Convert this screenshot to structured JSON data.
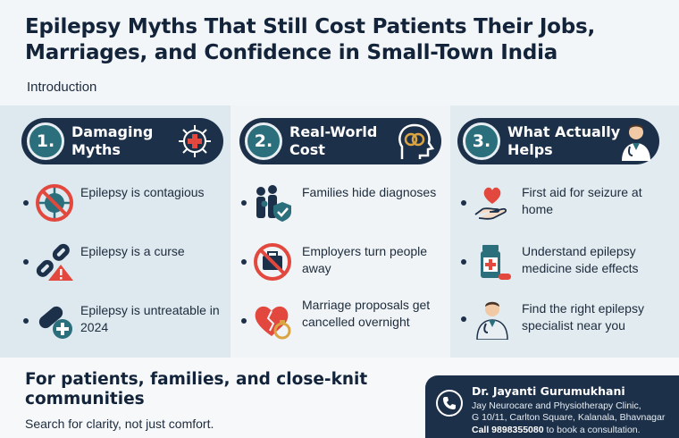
{
  "header": {
    "title": "Epilepsy Myths That Still Cost Patients Their Jobs, Marriages, and Confidence in Small-Town India",
    "intro": "Introduction"
  },
  "columns": [
    {
      "number": "1.",
      "heading": "Damaging Myths",
      "heading_icon": "medical-cross-virus-icon",
      "items": [
        {
          "text": "Epilepsy is contagious",
          "icon": "no-virus-icon"
        },
        {
          "text": "Epilepsy is a curse",
          "icon": "broken-chain-warning-icon"
        },
        {
          "text": "Epilepsy is untreatable in 2024",
          "icon": "pill-plus-icon"
        }
      ]
    },
    {
      "number": "2.",
      "heading": "Real-World Cost",
      "heading_icon": "head-rings-icon",
      "items": [
        {
          "text": "Families hide diagnoses",
          "icon": "family-shield-icon"
        },
        {
          "text": "Employers turn people away",
          "icon": "no-briefcase-icon"
        },
        {
          "text": "Marriage proposals get cancelled overnight",
          "icon": "broken-heart-ring-icon"
        }
      ]
    },
    {
      "number": "3.",
      "heading": "What Actually Helps",
      "heading_icon": "doctor-icon",
      "items": [
        {
          "text": "First aid for seizure at home",
          "icon": "heart-hand-icon"
        },
        {
          "text": "Understand epilepsy medicine side effects",
          "icon": "medicine-bottle-icon"
        },
        {
          "text": "Find the right epilepsy specialist near you",
          "icon": "specialist-icon"
        }
      ]
    }
  ],
  "footer": {
    "title": "For patients, families, and close-knit communities",
    "subtitle": "Search for clarity, not just comfort."
  },
  "contact": {
    "name": "Dr. Jayanti Gurumukhani",
    "clinic": "Jay Neurocare and Physiotherapy Clinic,",
    "address": "G 10/11, Carlton Square, Kalanala, Bhavnagar",
    "call_label": "Call 9898355080",
    "call_suffix": " to book a consultation."
  },
  "colors": {
    "navy": "#1d3049",
    "teal": "#2b6e7c",
    "red": "#e2483d"
  }
}
